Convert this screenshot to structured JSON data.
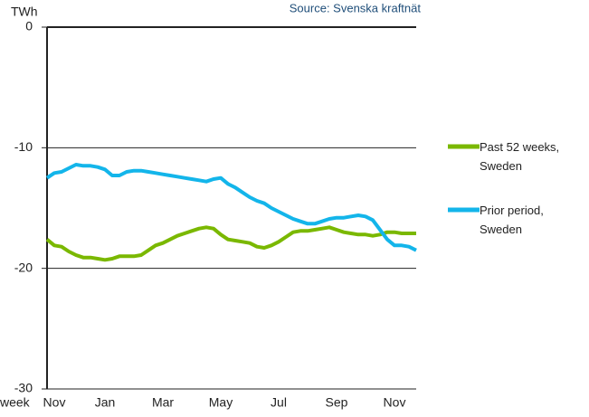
{
  "chart_data": {
    "type": "line",
    "source": "Source: Svenska kraftnät",
    "y_label": "TWh",
    "x_label": "week",
    "categories": [
      null,
      "Nov",
      null,
      null,
      null,
      null,
      null,
      null,
      "Jan",
      null,
      null,
      null,
      null,
      null,
      null,
      null,
      "Mar",
      null,
      null,
      null,
      null,
      null,
      null,
      null,
      "May",
      null,
      null,
      null,
      null,
      null,
      null,
      null,
      "Jul",
      null,
      null,
      null,
      null,
      null,
      null,
      null,
      "Sep",
      null,
      null,
      null,
      null,
      null,
      null,
      null,
      "Nov",
      null,
      null,
      null
    ],
    "series": [
      {
        "name": "Past 52 weeks, Sweden",
        "color": "#7ab800",
        "values": [
          -17.6,
          -18.1,
          -18.2,
          -18.6,
          -18.9,
          -19.1,
          -19.1,
          -19.2,
          -19.3,
          -19.2,
          -19.0,
          -19.0,
          -19.0,
          -18.9,
          -18.5,
          -18.1,
          -17.9,
          -17.6,
          -17.3,
          -17.1,
          -16.9,
          -16.7,
          -16.6,
          -16.7,
          -17.2,
          -17.6,
          -17.7,
          -17.8,
          -17.9,
          -18.2,
          -18.3,
          -18.1,
          -17.8,
          -17.4,
          -17.0,
          -16.9,
          -16.9,
          -16.8,
          -16.7,
          -16.6,
          -16.8,
          -17.0,
          -17.1,
          -17.2,
          -17.2,
          -17.3,
          -17.2,
          -17.0,
          -17.0,
          -17.1,
          -17.1,
          -17.1
        ]
      },
      {
        "name": "Prior period, Sweden",
        "color": "#13b5ea",
        "values": [
          -12.5,
          -12.1,
          -12.0,
          -11.7,
          -11.4,
          -11.5,
          -11.5,
          -11.6,
          -11.8,
          -12.3,
          -12.3,
          -12.0,
          -11.9,
          -11.9,
          -12.0,
          -12.1,
          -12.2,
          -12.3,
          -12.4,
          -12.5,
          -12.6,
          -12.7,
          -12.8,
          -12.6,
          -12.5,
          -13.0,
          -13.3,
          -13.7,
          -14.1,
          -14.4,
          -14.6,
          -15.0,
          -15.3,
          -15.6,
          -15.9,
          -16.1,
          -16.3,
          -16.3,
          -16.1,
          -15.9,
          -15.8,
          -15.8,
          -15.7,
          -15.6,
          -15.7,
          -16.0,
          -16.8,
          -17.6,
          -18.1,
          -18.1,
          -18.2,
          -18.5
        ]
      }
    ],
    "ylim": [
      -30,
      0
    ],
    "yticks": [
      0,
      -10,
      -20,
      -30
    ],
    "grid": true,
    "legend": "right"
  }
}
